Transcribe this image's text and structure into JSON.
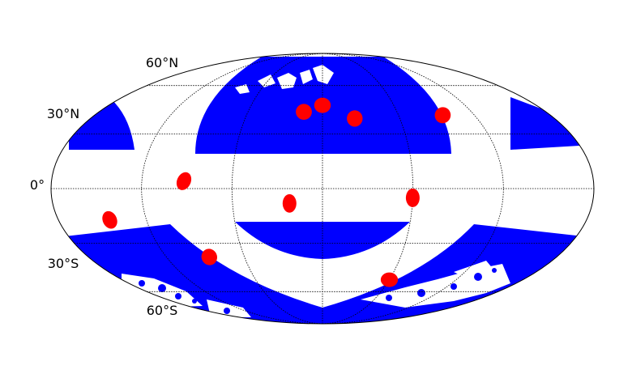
{
  "map": {
    "projection": "Mollweide",
    "graticule_spacing_deg": 30,
    "latitude_labels": [
      {
        "lat": 60,
        "text": "60°N"
      },
      {
        "lat": 30,
        "text": "30°N"
      },
      {
        "lat": 0,
        "text": "0°"
      },
      {
        "lat": -30,
        "text": "30°S"
      },
      {
        "lat": -60,
        "text": "60°S"
      }
    ],
    "colors": {
      "background": "#ffffff",
      "coverage": "#0000ff",
      "marker": "#ff0000",
      "outline": "#000000",
      "grid": "#000000"
    },
    "markers": [
      {
        "lon": 0,
        "lat": 47
      },
      {
        "lon": -15,
        "lat": 43
      },
      {
        "lon": 25,
        "lat": 39
      },
      {
        "lon": 95,
        "lat": 41
      },
      {
        "lon": -92,
        "lat": 4
      },
      {
        "lon": -22,
        "lat": -8
      },
      {
        "lon": 60,
        "lat": -5
      },
      {
        "lon": -145,
        "lat": -17
      },
      {
        "lon": -87,
        "lat": -38
      },
      {
        "lon": 60,
        "lat": -52
      }
    ]
  }
}
